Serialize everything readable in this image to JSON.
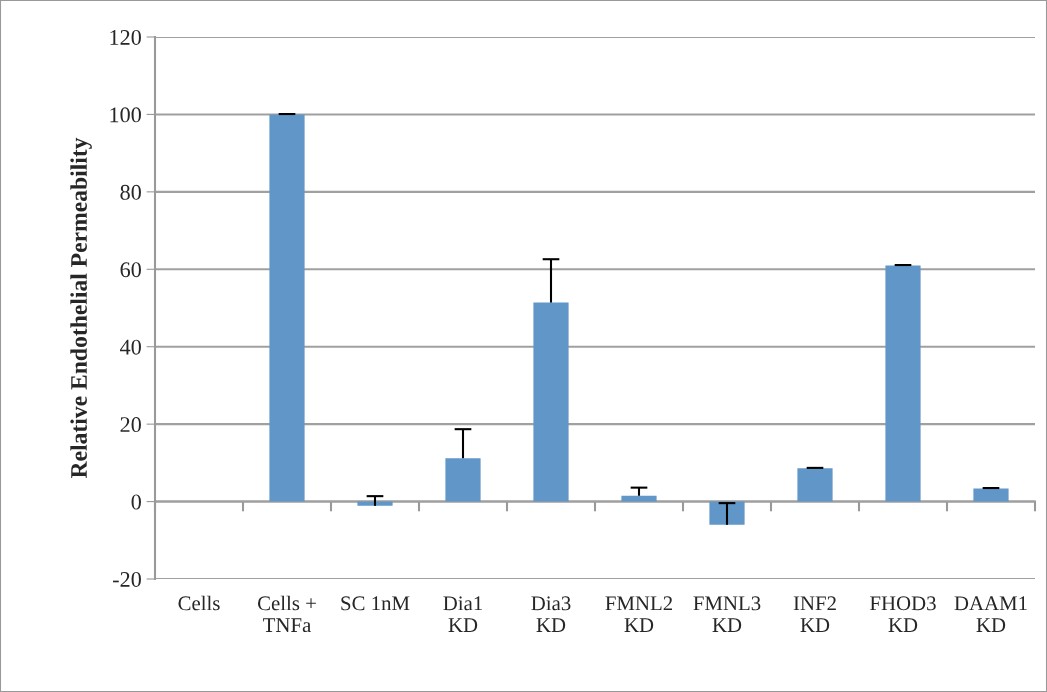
{
  "chart_data": {
    "type": "bar",
    "ylabel": "Relative Endothelial Permeability",
    "categories": [
      "Cells",
      "Cells +\nTNFa",
      "SC 1nM",
      "Dia1\nKD",
      "Dia3\nKD",
      "FMNL2\nKD",
      "FMNL3\nKD",
      "INF2\nKD",
      "FHOD3\nKD",
      "DAAM1\nKD"
    ],
    "values": [
      0,
      100,
      -1.1,
      11.2,
      51.4,
      1.5,
      -6.0,
      8.6,
      61.0,
      3.4
    ],
    "errors": [
      null,
      [
        100,
        100.1
      ],
      [
        -1.1,
        1.4
      ],
      [
        11.2,
        18.7
      ],
      [
        51.4,
        62.6
      ],
      [
        1.5,
        3.6
      ],
      [
        -6.0,
        -0.4
      ],
      [
        8.6,
        8.7
      ],
      [
        61.0,
        61.1
      ],
      [
        3.4,
        3.5
      ]
    ],
    "color": "#6096c8",
    "ylim": [
      -20,
      120
    ],
    "yticks": [
      -20,
      0,
      20,
      40,
      60,
      80,
      100,
      120
    ],
    "grid": "y",
    "legend": false
  }
}
